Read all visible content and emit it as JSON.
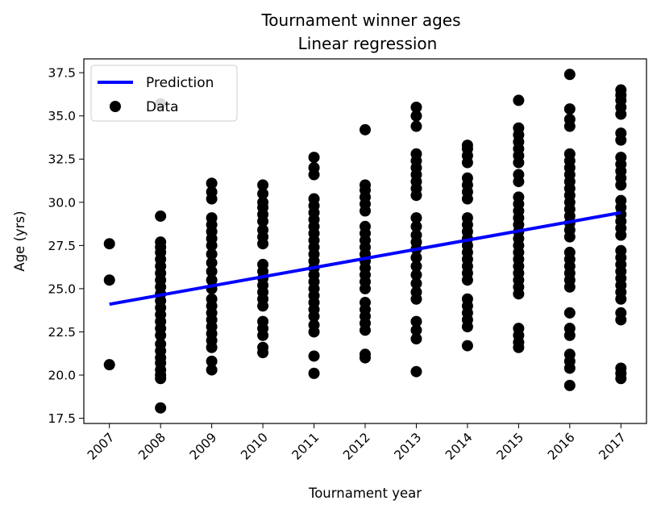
{
  "chart_data": {
    "type": "scatter",
    "title": "Tournament winner ages",
    "subtitle": "Linear regression",
    "xlabel": "Tournament year",
    "ylabel": "Age (yrs)",
    "xlim": [
      2006.5,
      2017.5
    ],
    "ylim": [
      17.2,
      38.3
    ],
    "x_ticks": [
      2007,
      2008,
      2009,
      2010,
      2011,
      2012,
      2013,
      2014,
      2015,
      2016,
      2017
    ],
    "y_ticks": [
      17.5,
      20.0,
      22.5,
      25.0,
      27.5,
      30.0,
      32.5,
      35.0,
      37.5
    ],
    "grid": false,
    "legend": {
      "position": "top-left",
      "entries": [
        "Prediction",
        "Data"
      ]
    },
    "series": [
      {
        "name": "Prediction",
        "kind": "line",
        "color": "#0000ff",
        "x": [
          2007,
          2017
        ],
        "y": [
          24.1,
          29.4
        ]
      },
      {
        "name": "Data",
        "kind": "scatter",
        "color": "#000000",
        "points": [
          {
            "year": 2007,
            "ages": [
              20.6,
              25.5,
              27.6
            ]
          },
          {
            "year": 2008,
            "ages": [
              18.1,
              19.8,
              20.0,
              20.3,
              20.7,
              21.0,
              21.4,
              21.8,
              22.3,
              22.7,
              23.1,
              23.5,
              23.9,
              24.3,
              24.7,
              25.1,
              25.5,
              25.9,
              26.3,
              26.7,
              27.1,
              27.4,
              27.7,
              29.2,
              35.7
            ]
          },
          {
            "year": 2009,
            "ages": [
              20.3,
              20.8,
              21.6,
              22.0,
              22.4,
              22.8,
              23.2,
              23.6,
              24.0,
              24.4,
              25.0,
              25.5,
              26.0,
              26.5,
              27.0,
              27.5,
              27.9,
              28.3,
              28.7,
              29.1,
              30.2,
              30.6,
              31.1
            ]
          },
          {
            "year": 2010,
            "ages": [
              21.3,
              21.6,
              22.3,
              22.7,
              23.1,
              24.0,
              24.4,
              24.8,
              25.2,
              25.6,
              26.0,
              26.4,
              27.6,
              28.0,
              28.4,
              28.9,
              29.3,
              29.7,
              30.0,
              30.5,
              31.0
            ]
          },
          {
            "year": 2011,
            "ages": [
              20.1,
              21.1,
              22.5,
              22.9,
              23.4,
              23.8,
              24.2,
              24.6,
              25.0,
              25.4,
              25.8,
              26.2,
              26.6,
              27.0,
              27.4,
              27.8,
              28.2,
              28.6,
              29.0,
              29.4,
              29.8,
              30.2,
              31.6,
              32.0,
              32.6
            ]
          },
          {
            "year": 2012,
            "ages": [
              21.0,
              21.2,
              22.6,
              23.0,
              23.4,
              23.8,
              24.2,
              25.0,
              25.4,
              25.8,
              26.2,
              26.6,
              27.0,
              27.4,
              27.8,
              28.2,
              28.6,
              29.5,
              29.9,
              30.3,
              30.7,
              31.0,
              34.2
            ]
          },
          {
            "year": 2013,
            "ages": [
              20.2,
              22.1,
              22.6,
              23.1,
              24.4,
              24.8,
              25.3,
              25.8,
              26.3,
              26.8,
              27.3,
              27.7,
              28.1,
              28.6,
              29.1,
              30.4,
              30.8,
              31.2,
              31.6,
              32.0,
              32.4,
              32.8,
              34.4,
              35.0,
              35.5
            ]
          },
          {
            "year": 2014,
            "ages": [
              21.7,
              22.8,
              23.2,
              23.6,
              24.0,
              24.4,
              25.5,
              25.9,
              26.3,
              26.7,
              27.1,
              27.5,
              27.9,
              28.3,
              28.7,
              29.1,
              30.2,
              30.6,
              31.0,
              31.4,
              32.3,
              32.7,
              33.1,
              33.3
            ]
          },
          {
            "year": 2015,
            "ages": [
              21.6,
              21.9,
              22.3,
              22.7,
              24.7,
              25.1,
              25.5,
              25.9,
              26.3,
              26.7,
              27.1,
              27.5,
              27.9,
              28.3,
              28.7,
              29.1,
              29.5,
              29.9,
              30.3,
              31.2,
              31.6,
              32.3,
              32.7,
              33.1,
              33.5,
              33.9,
              34.3,
              35.9
            ]
          },
          {
            "year": 2016,
            "ages": [
              19.4,
              20.4,
              20.8,
              21.2,
              22.3,
              22.7,
              23.6,
              25.1,
              25.5,
              25.9,
              26.3,
              26.7,
              27.1,
              28.0,
              28.4,
              28.8,
              29.2,
              29.6,
              30.0,
              30.4,
              30.8,
              31.2,
              31.6,
              32.0,
              32.4,
              32.8,
              34.4,
              34.8,
              35.4,
              37.4
            ]
          },
          {
            "year": 2017,
            "ages": [
              19.8,
              20.1,
              20.4,
              23.2,
              23.6,
              24.4,
              24.8,
              25.2,
              25.6,
              26.0,
              26.4,
              26.8,
              27.2,
              28.1,
              28.5,
              28.9,
              29.3,
              29.7,
              30.1,
              31.0,
              31.4,
              31.8,
              32.2,
              32.6,
              33.6,
              34.0,
              35.1,
              35.5,
              35.9,
              36.2,
              36.5
            ]
          }
        ]
      }
    ]
  }
}
